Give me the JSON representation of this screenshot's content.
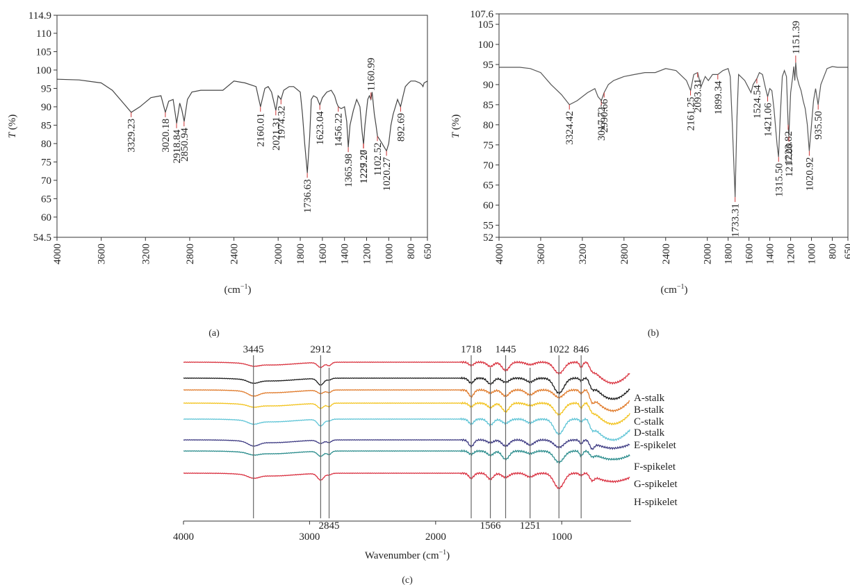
{
  "chart_data": [
    {
      "type": "line",
      "panel_label": "(a)",
      "xlabel": "(cm",
      "xlabel_sup": "−1",
      "xlabel_close": ")",
      "ylabel_var": "T",
      "ylabel_unit": "(%)",
      "xlim": [
        4000,
        650
      ],
      "ylim": [
        54.5,
        114.9
      ],
      "x_ticks": [
        "4000",
        "3600",
        "3200",
        "2800",
        "2400",
        "2000",
        "1800",
        "1600",
        "1400",
        "1200",
        "1000",
        "800",
        "650"
      ],
      "y_ticks": [
        "54.5",
        "60",
        "65",
        "70",
        "75",
        "80",
        "85",
        "90",
        "95",
        "100",
        "105",
        "110",
        "114.9"
      ],
      "series": [
        {
          "color": "#444444",
          "x": [
            4000,
            3800,
            3600,
            3500,
            3400,
            3329,
            3250,
            3150,
            3060,
            3020,
            2990,
            2950,
            2918,
            2890,
            2870,
            2850,
            2820,
            2780,
            2700,
            2600,
            2500,
            2400,
            2300,
            2200,
            2160,
            2120,
            2090,
            2060,
            2040,
            2021,
            2000,
            1974,
            1950,
            1900,
            1860,
            1800,
            1780,
            1760,
            1736,
            1715,
            1700,
            1680,
            1650,
            1623,
            1600,
            1560,
            1520,
            1490,
            1470,
            1456,
            1430,
            1400,
            1380,
            1366,
            1350,
            1320,
            1290,
            1260,
            1240,
            1229,
            1227,
            1215,
            1190,
            1175,
            1161,
            1150,
            1130,
            1115,
            1102,
            1080,
            1060,
            1040,
            1020,
            1000,
            980,
            960,
            940,
            920,
            893,
            870,
            850,
            820,
            800,
            760,
            720,
            700,
            690,
            680,
            650
          ],
          "y": [
            97.5,
            97.3,
            96.5,
            94.5,
            91,
            88.5,
            90,
            92.5,
            93,
            88.5,
            91.5,
            92,
            85.5,
            91,
            89,
            86,
            92,
            94,
            94.5,
            94.5,
            94.5,
            97,
            96.5,
            95.5,
            90,
            95,
            95.5,
            94,
            91.5,
            89,
            93,
            92,
            94.5,
            95.5,
            95.5,
            94,
            88,
            80,
            72,
            82,
            92,
            93,
            92.5,
            90.5,
            92.5,
            94,
            94.5,
            93,
            91,
            90,
            89.5,
            90,
            86,
            79,
            85,
            89,
            92,
            90,
            83,
            80,
            80,
            85,
            92,
            93,
            92,
            94,
            88,
            85,
            82,
            81,
            80,
            79,
            78,
            80,
            85,
            88,
            90,
            92,
            90,
            93,
            95.5,
            96.5,
            97,
            97,
            96.5,
            96,
            95.5,
            96.5,
            97
          ]
        }
      ],
      "peak_labels": [
        {
          "x": 3329.23,
          "y": 88.5,
          "text": "3329.23"
        },
        {
          "x": 3020.18,
          "y": 88.5,
          "text": "3020.18"
        },
        {
          "x": 2918.84,
          "y": 85.5,
          "text": "2918.84"
        },
        {
          "x": 2850.94,
          "y": 86,
          "text": "2850.94"
        },
        {
          "x": 2160.01,
          "y": 90,
          "text": "2160.01"
        },
        {
          "x": 2021.31,
          "y": 89,
          "text": "2021.31"
        },
        {
          "x": 1974.32,
          "y": 92,
          "text": "1974.32"
        },
        {
          "x": 1736.63,
          "y": 72,
          "text": "1736.63"
        },
        {
          "x": 1623.04,
          "y": 90.5,
          "text": "1623.04"
        },
        {
          "x": 1456.22,
          "y": 90,
          "text": "1456.22"
        },
        {
          "x": 1365.98,
          "y": 79,
          "text": "1365.98"
        },
        {
          "x": 1229.27,
          "y": 80,
          "text": "1229.27"
        },
        {
          "x": 1227.2,
          "y": 80,
          "text": "1227.20"
        },
        {
          "x": 1160.99,
          "y": 92,
          "text": "1160.99",
          "above": true
        },
        {
          "x": 1102.52,
          "y": 82,
          "text": "1102.52"
        },
        {
          "x": 1020.27,
          "y": 78,
          "text": "1020.27"
        },
        {
          "x": 892.69,
          "y": 90,
          "text": "892.69"
        }
      ]
    },
    {
      "type": "line",
      "panel_label": "(b)",
      "xlabel": "(cm",
      "xlabel_sup": "−1",
      "xlabel_close": ")",
      "ylabel_var": "T",
      "ylabel_unit": "(%)",
      "xlim": [
        4000,
        650
      ],
      "ylim": [
        52,
        107.6
      ],
      "x_ticks": [
        "4000",
        "3600",
        "3200",
        "2800",
        "2400",
        "2000",
        "1800",
        "1600",
        "1400",
        "1200",
        "1000",
        "800",
        "650"
      ],
      "y_ticks": [
        "52",
        "55",
        "60",
        "65",
        "70",
        "75",
        "80",
        "85",
        "90",
        "95",
        "100",
        "105",
        "107.6"
      ],
      "series": [
        {
          "color": "#555555",
          "x": [
            4000,
            3800,
            3700,
            3600,
            3500,
            3400,
            3324,
            3250,
            3150,
            3080,
            3050,
            3018,
            2991,
            2950,
            2900,
            2800,
            2700,
            2600,
            2500,
            2400,
            2300,
            2200,
            2161,
            2130,
            2093,
            2060,
            2020,
            1990,
            1950,
            1899,
            1850,
            1800,
            1780,
            1760,
            1733,
            1715,
            1700,
            1680,
            1640,
            1600,
            1580,
            1560,
            1524,
            1500,
            1470,
            1440,
            1421,
            1400,
            1380,
            1360,
            1330,
            1316,
            1300,
            1280,
            1260,
            1240,
            1224,
            1217,
            1200,
            1180,
            1170,
            1160,
            1151,
            1140,
            1120,
            1100,
            1080,
            1060,
            1040,
            1021,
            1000,
            980,
            960,
            936,
            910,
            880,
            850,
            800,
            750,
            700,
            650
          ],
          "y": [
            94.3,
            94.3,
            94,
            93,
            90,
            87.5,
            85,
            86,
            88,
            89,
            87,
            86,
            88,
            90,
            91,
            92,
            92.5,
            93,
            93,
            94,
            93.5,
            91,
            88.5,
            92.5,
            93,
            89.5,
            92,
            91,
            92.5,
            92.5,
            93.5,
            94,
            92,
            80,
            62,
            82,
            92.5,
            92,
            91,
            89,
            88,
            90,
            91.5,
            93,
            92.5,
            89,
            87,
            89,
            88.5,
            84,
            75,
            72,
            82,
            92,
            93.5,
            92,
            80,
            77,
            88,
            92,
            94.5,
            91,
            95.5,
            92,
            90,
            88.5,
            86,
            84,
            80,
            73.5,
            80,
            86,
            89,
            85,
            90,
            92,
            94,
            94.5,
            94.3,
            94.3,
            94.3
          ]
        }
      ],
      "peak_labels": [
        {
          "x": 3324.42,
          "y": 85,
          "text": "3324.42"
        },
        {
          "x": 3017.72,
          "y": 86,
          "text": "3017.72"
        },
        {
          "x": 2990.66,
          "y": 88,
          "text": "2990.66"
        },
        {
          "x": 2161.25,
          "y": 88.5,
          "text": "2161.25"
        },
        {
          "x": 2093.31,
          "y": 93,
          "text": "2093.31"
        },
        {
          "x": 1899.34,
          "y": 92.5,
          "text": "1899.34"
        },
        {
          "x": 1733.31,
          "y": 62,
          "text": "1733.31"
        },
        {
          "x": 1524.54,
          "y": 91.5,
          "text": "1524.54"
        },
        {
          "x": 1421.06,
          "y": 87,
          "text": "1421.06"
        },
        {
          "x": 1315.5,
          "y": 72,
          "text": "1315.50"
        },
        {
          "x": 1223.82,
          "y": 80,
          "text": "1223.82"
        },
        {
          "x": 1217.0,
          "y": 77,
          "text": "1217.00"
        },
        {
          "x": 1151.39,
          "y": 95.5,
          "text": "1151.39",
          "above": true
        },
        {
          "x": 1020.92,
          "y": 73.5,
          "text": "1020.92"
        },
        {
          "x": 935.5,
          "y": 85,
          "text": "935.50"
        }
      ]
    },
    {
      "type": "line",
      "panel_label": "(c)",
      "xlabel": "Wavenumber (cm",
      "xlabel_sup": "−1",
      "xlabel_close": ")",
      "xlim": [
        4000,
        450
      ],
      "x_ticks": [
        4000,
        3000,
        2000,
        1000
      ],
      "vlines_top": [
        3445,
        2912,
        1718,
        1445,
        1022,
        846
      ],
      "vlines_bottom": [
        2845,
        1566,
        1251
      ],
      "series": [
        {
          "name": "A-stalk",
          "color": "#d9333f",
          "baseline": 0
        },
        {
          "name": "B-stalk",
          "color": "#1a1a1a",
          "baseline": 1
        },
        {
          "name": "C-stalk",
          "color": "#e07a2a",
          "baseline": 2
        },
        {
          "name": "D-stalk",
          "color": "#f2c21b",
          "baseline": 3
        },
        {
          "name": "E-spikelet",
          "color": "#5ec4d6",
          "baseline": 4
        },
        {
          "name": "F-spikelet",
          "color": "#3d3a82",
          "baseline": 5
        },
        {
          "name": "G-spikelet",
          "color": "#2a8c8c",
          "baseline": 6
        },
        {
          "name": "H-spikelet",
          "color": "#d93040",
          "baseline": 7
        }
      ]
    }
  ]
}
